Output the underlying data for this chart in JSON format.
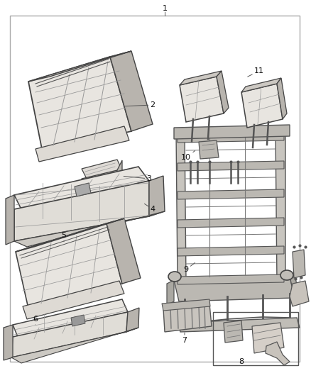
{
  "bg": "#ffffff",
  "border_color": "#bbbbbb",
  "lc": "#444444",
  "lc2": "#666666",
  "lc_light": "#999999",
  "fc_seat": "#e8e5e0",
  "fc_frame": "#d0ccc6",
  "fc_dark": "#b8b4ae",
  "fig_w": 4.38,
  "fig_h": 5.33,
  "dpi": 100,
  "label_fs": 8,
  "label_color": "#111111"
}
